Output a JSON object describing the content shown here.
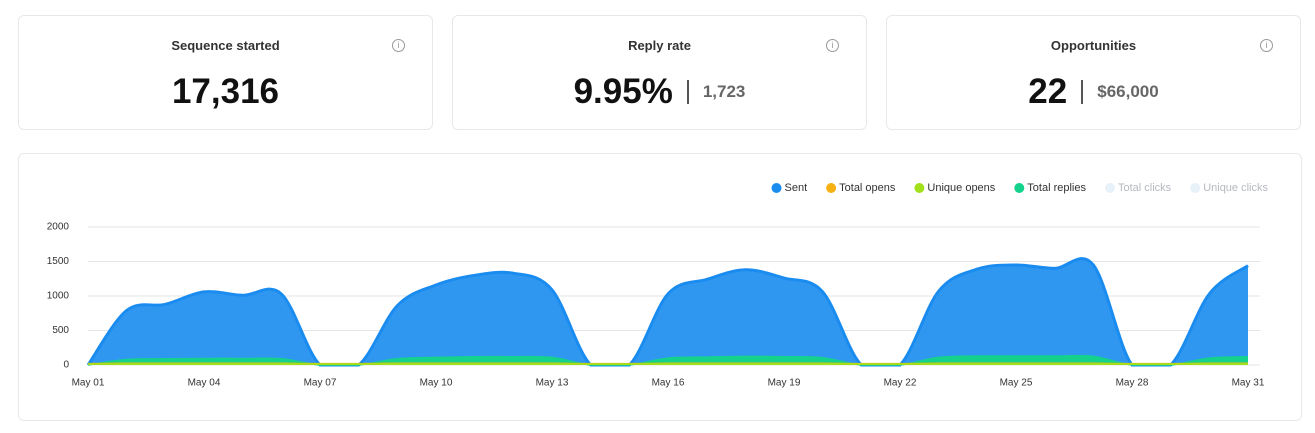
{
  "cards": [
    {
      "title": "Sequence started",
      "value": "17,316"
    },
    {
      "title": "Reply rate",
      "value": "9.95%",
      "secondary": "1,723"
    },
    {
      "title": "Opportunities",
      "value": "22",
      "secondary": "$66,000"
    }
  ],
  "chart_data": {
    "type": "area",
    "categories": [
      "May 01",
      null,
      null,
      "May 04",
      null,
      null,
      "May 07",
      null,
      null,
      "May 10",
      null,
      null,
      "May 13",
      null,
      null,
      "May 16",
      null,
      null,
      "May 19",
      null,
      null,
      "May 22",
      null,
      null,
      "May 25",
      null,
      null,
      "May 28",
      null,
      null,
      "May 31"
    ],
    "series": [
      {
        "name": "Sent",
        "color": "#1a8cf0",
        "values": [
          0,
          790,
          880,
          1060,
          1010,
          1030,
          0,
          0,
          860,
          1160,
          1300,
          1330,
          1090,
          0,
          0,
          1030,
          1240,
          1380,
          1260,
          1060,
          0,
          0,
          1070,
          1390,
          1450,
          1400,
          1450,
          0,
          0,
          1030,
          1440
        ]
      },
      {
        "name": "Total opens",
        "color": "#f5b014",
        "values": [
          20,
          25,
          25,
          25,
          25,
          25,
          20,
          20,
          25,
          25,
          25,
          25,
          25,
          20,
          20,
          25,
          25,
          25,
          25,
          25,
          20,
          20,
          25,
          25,
          25,
          25,
          25,
          20,
          20,
          25,
          25
        ]
      },
      {
        "name": "Unique opens",
        "color": "#a2e01a",
        "values": [
          15,
          18,
          18,
          18,
          18,
          18,
          15,
          15,
          18,
          18,
          18,
          18,
          18,
          15,
          15,
          18,
          18,
          18,
          18,
          18,
          15,
          15,
          18,
          18,
          18,
          18,
          18,
          15,
          15,
          18,
          18
        ]
      },
      {
        "name": "Total replies",
        "color": "#14d18c",
        "values": [
          0,
          80,
          90,
          95,
          95,
          90,
          0,
          0,
          90,
          110,
          120,
          120,
          110,
          0,
          0,
          100,
          115,
          125,
          120,
          105,
          0,
          0,
          110,
          130,
          130,
          130,
          125,
          0,
          0,
          100,
          120
        ]
      },
      {
        "name": "Total clicks",
        "color": "#e6f1fa",
        "hidden": true
      },
      {
        "name": "Unique clicks",
        "color": "#e6f1fa",
        "hidden": true
      }
    ],
    "ylim": [
      0,
      2000
    ],
    "yticks": [
      0,
      500,
      1000,
      1500,
      2000
    ],
    "grid": true,
    "legend": "top-right"
  }
}
